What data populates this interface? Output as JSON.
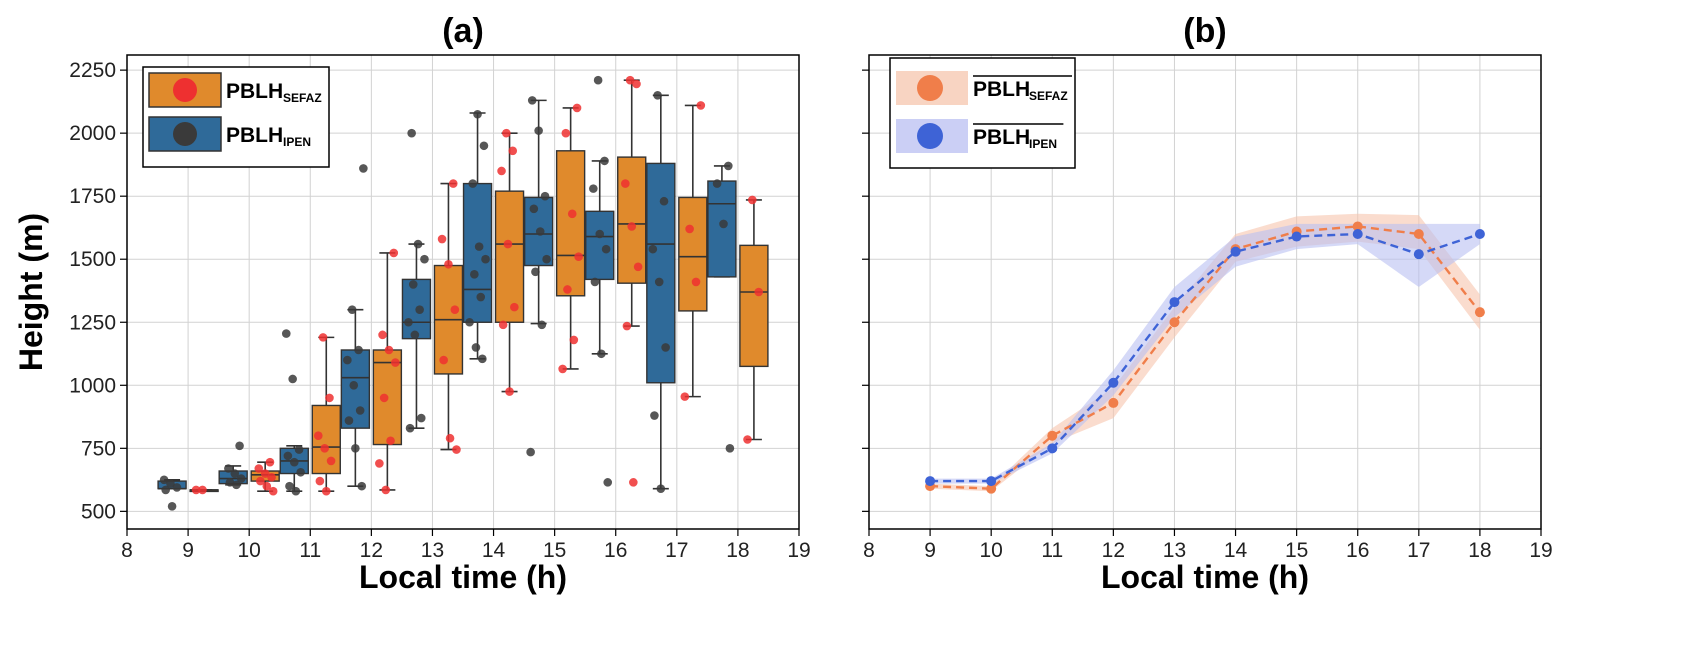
{
  "chart_data": [
    {
      "type": "box",
      "panel_label": "(a)",
      "xlabel": "Local time (h)",
      "ylabel": "Height (m)",
      "xlim": [
        8,
        19
      ],
      "ylim": [
        430,
        2310
      ],
      "xticks": [
        8,
        9,
        10,
        11,
        12,
        13,
        14,
        15,
        16,
        17,
        18,
        19
      ],
      "yticks": [
        500,
        750,
        1000,
        1250,
        1500,
        1750,
        2000,
        2250
      ],
      "grid": true,
      "legend_position": "top-left",
      "series": [
        {
          "name": "PBLH",
          "subscript": "IPEN",
          "box_color": "#2f6a99",
          "point_color": "#3a3a3a",
          "boxes": [
            {
              "x": 9,
              "whislo": 590,
              "q1": 590,
              "med": 590,
              "q3": 620,
              "whishi": 625
            },
            {
              "x": 10,
              "whislo": 605,
              "q1": 610,
              "med": 630,
              "q3": 660,
              "whishi": 680
            },
            {
              "x": 11,
              "whislo": 580,
              "q1": 650,
              "med": 700,
              "q3": 750,
              "whishi": 760
            },
            {
              "x": 12,
              "whislo": 600,
              "q1": 830,
              "med": 1030,
              "q3": 1140,
              "whishi": 1300
            },
            {
              "x": 13,
              "whislo": 830,
              "q1": 1185,
              "med": 1250,
              "q3": 1420,
              "whishi": 1560
            },
            {
              "x": 14,
              "whislo": 1105,
              "q1": 1250,
              "med": 1380,
              "q3": 1800,
              "whishi": 2080
            },
            {
              "x": 15,
              "whislo": 1245,
              "q1": 1475,
              "med": 1600,
              "q3": 1745,
              "whishi": 2130
            },
            {
              "x": 16,
              "whislo": 1125,
              "q1": 1420,
              "med": 1590,
              "q3": 1690,
              "whishi": 1890
            },
            {
              "x": 17,
              "whislo": 590,
              "q1": 1010,
              "med": 1560,
              "q3": 1880,
              "whishi": 2150
            },
            {
              "x": 18,
              "whislo": 1430,
              "q1": 1430,
              "med": 1720,
              "q3": 1810,
              "whishi": 1870
            }
          ],
          "points": [
            [
              9,
              625
            ],
            [
              9,
              610
            ],
            [
              9,
              595
            ],
            [
              9,
              585
            ],
            [
              9,
              520
            ],
            [
              10,
              760
            ],
            [
              10,
              670
            ],
            [
              10,
              650
            ],
            [
              10,
              630
            ],
            [
              10,
              615
            ],
            [
              10,
              605
            ],
            [
              11,
              1205
            ],
            [
              11,
              1025
            ],
            [
              11,
              745
            ],
            [
              11,
              720
            ],
            [
              11,
              695
            ],
            [
              11,
              655
            ],
            [
              11,
              600
            ],
            [
              11,
              580
            ],
            [
              12,
              1860
            ],
            [
              12,
              1300
            ],
            [
              12,
              1140
            ],
            [
              12,
              1100
            ],
            [
              12,
              1000
            ],
            [
              12,
              900
            ],
            [
              12,
              860
            ],
            [
              12,
              750
            ],
            [
              12,
              600
            ],
            [
              13,
              2000
            ],
            [
              13,
              1560
            ],
            [
              13,
              1500
            ],
            [
              13,
              1400
            ],
            [
              13,
              1300
            ],
            [
              13,
              1250
            ],
            [
              13,
              1200
            ],
            [
              13,
              870
            ],
            [
              13,
              830
            ],
            [
              14,
              2075
            ],
            [
              14,
              1950
            ],
            [
              14,
              1800
            ],
            [
              14,
              1550
            ],
            [
              14,
              1500
            ],
            [
              14,
              1440
            ],
            [
              14,
              1350
            ],
            [
              14,
              1250
            ],
            [
              14,
              1150
            ],
            [
              14,
              1105
            ],
            [
              15,
              2130
            ],
            [
              15,
              2010
            ],
            [
              15,
              1750
            ],
            [
              15,
              1700
            ],
            [
              15,
              1610
            ],
            [
              15,
              1500
            ],
            [
              15,
              1450
            ],
            [
              15,
              1240
            ],
            [
              15,
              735
            ],
            [
              16,
              2210
            ],
            [
              16,
              1890
            ],
            [
              16,
              1780
            ],
            [
              16,
              1600
            ],
            [
              16,
              1540
            ],
            [
              16,
              1410
            ],
            [
              16,
              1125
            ],
            [
              16,
              615
            ],
            [
              17,
              2150
            ],
            [
              17,
              1730
            ],
            [
              17,
              1540
            ],
            [
              17,
              1410
            ],
            [
              17,
              1150
            ],
            [
              17,
              880
            ],
            [
              17,
              590
            ],
            [
              18,
              1870
            ],
            [
              18,
              1800
            ],
            [
              18,
              1640
            ],
            [
              18,
              750
            ]
          ]
        },
        {
          "name": "PBLH",
          "subscript": "SEFAZ",
          "box_color": "#e08a2c",
          "point_color": "#ee3030",
          "boxes": [
            {
              "x": 9,
              "whislo": 585,
              "q1": 585,
              "med": 585,
              "q3": 585,
              "whishi": 585
            },
            {
              "x": 10,
              "whislo": 580,
              "q1": 620,
              "med": 645,
              "q3": 660,
              "whishi": 695
            },
            {
              "x": 11,
              "whislo": 580,
              "q1": 650,
              "med": 755,
              "q3": 920,
              "whishi": 1190
            },
            {
              "x": 12,
              "whislo": 585,
              "q1": 765,
              "med": 1090,
              "q3": 1140,
              "whishi": 1525
            },
            {
              "x": 13,
              "whislo": 745,
              "q1": 1045,
              "med": 1260,
              "q3": 1475,
              "whishi": 1800
            },
            {
              "x": 14,
              "whislo": 975,
              "q1": 1250,
              "med": 1560,
              "q3": 1770,
              "whishi": 2000
            },
            {
              "x": 15,
              "whislo": 1065,
              "q1": 1355,
              "med": 1515,
              "q3": 1930,
              "whishi": 2100
            },
            {
              "x": 16,
              "whislo": 1235,
              "q1": 1405,
              "med": 1640,
              "q3": 1905,
              "whishi": 2210
            },
            {
              "x": 17,
              "whislo": 955,
              "q1": 1295,
              "med": 1510,
              "q3": 1745,
              "whishi": 2110
            },
            {
              "x": 18,
              "whislo": 785,
              "q1": 1075,
              "med": 1370,
              "q3": 1555,
              "whishi": 1735
            }
          ],
          "points": [
            [
              9,
              585
            ],
            [
              9,
              585
            ],
            [
              10,
              695
            ],
            [
              10,
              670
            ],
            [
              10,
              650
            ],
            [
              10,
              635
            ],
            [
              10,
              620
            ],
            [
              10,
              600
            ],
            [
              10,
              580
            ],
            [
              11,
              1190
            ],
            [
              11,
              950
            ],
            [
              11,
              800
            ],
            [
              11,
              750
            ],
            [
              11,
              700
            ],
            [
              11,
              620
            ],
            [
              11,
              580
            ],
            [
              12,
              1525
            ],
            [
              12,
              1200
            ],
            [
              12,
              1140
            ],
            [
              12,
              1090
            ],
            [
              12,
              950
            ],
            [
              12,
              780
            ],
            [
              12,
              690
            ],
            [
              12,
              585
            ],
            [
              13,
              1800
            ],
            [
              13,
              1580
            ],
            [
              13,
              1480
            ],
            [
              13,
              1300
            ],
            [
              13,
              1100
            ],
            [
              13,
              790
            ],
            [
              13,
              745
            ],
            [
              14,
              2000
            ],
            [
              14,
              1930
            ],
            [
              14,
              1850
            ],
            [
              14,
              1560
            ],
            [
              14,
              1310
            ],
            [
              14,
              1240
            ],
            [
              14,
              975
            ],
            [
              15,
              2100
            ],
            [
              15,
              2000
            ],
            [
              15,
              1680
            ],
            [
              15,
              1510
            ],
            [
              15,
              1380
            ],
            [
              15,
              1180
            ],
            [
              15,
              1065
            ],
            [
              16,
              2210
            ],
            [
              16,
              2195
            ],
            [
              16,
              1800
            ],
            [
              16,
              1630
            ],
            [
              16,
              1470
            ],
            [
              16,
              1235
            ],
            [
              16,
              615
            ],
            [
              17,
              2110
            ],
            [
              17,
              1620
            ],
            [
              17,
              1410
            ],
            [
              17,
              955
            ],
            [
              18,
              1735
            ],
            [
              18,
              1370
            ],
            [
              18,
              785
            ]
          ]
        }
      ]
    },
    {
      "type": "line",
      "panel_label": "(b)",
      "xlabel": "Local time (h)",
      "xlim": [
        8,
        19
      ],
      "ylim": [
        430,
        2310
      ],
      "xticks": [
        8,
        9,
        10,
        11,
        12,
        13,
        14,
        15,
        16,
        17,
        18,
        19
      ],
      "yticks": [
        500,
        750,
        1000,
        1250,
        1500,
        1750,
        2000,
        2250
      ],
      "grid": true,
      "legend_position": "top-left",
      "x": [
        9,
        10,
        11,
        12,
        13,
        14,
        15,
        16,
        17,
        18
      ],
      "series": [
        {
          "name": "PBLH",
          "subscript": "SEFAZ",
          "overline": true,
          "color": "#f07e4a",
          "band_color": "#f6c5ad",
          "values": [
            600,
            590,
            800,
            930,
            1250,
            1540,
            1610,
            1630,
            1600,
            1290
          ],
          "band_low": [
            590,
            580,
            770,
            870,
            1190,
            1490,
            1550,
            1570,
            1540,
            1220
          ],
          "band_high": [
            610,
            600,
            830,
            990,
            1310,
            1600,
            1670,
            1680,
            1675,
            1360
          ]
        },
        {
          "name": "PBLH",
          "subscript": "IPEN",
          "overline": true,
          "color": "#3e63d6",
          "band_color": "#b9bff2",
          "values": [
            620,
            620,
            750,
            1010,
            1330,
            1530,
            1590,
            1600,
            1520,
            1600
          ],
          "band_low": [
            610,
            610,
            730,
            960,
            1270,
            1470,
            1540,
            1560,
            1390,
            1560
          ],
          "band_high": [
            630,
            630,
            770,
            1060,
            1390,
            1590,
            1640,
            1640,
            1640,
            1640
          ]
        }
      ]
    }
  ]
}
